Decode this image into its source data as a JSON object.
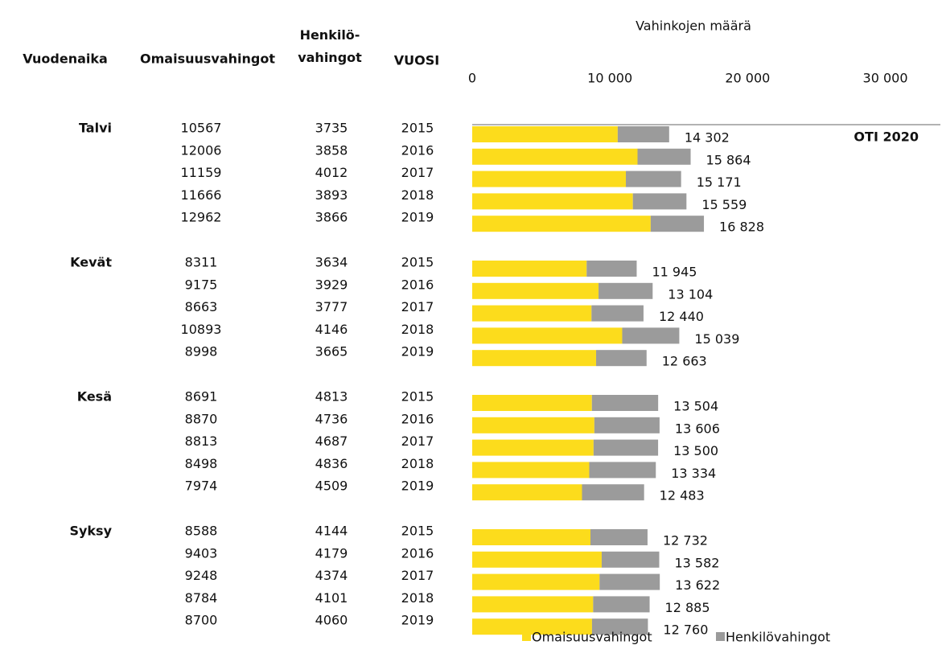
{
  "chart_data": {
    "type": "bar",
    "orientation": "horizontal",
    "stacked": true,
    "axis_title": "Vahinkojen määrä",
    "annotation": "OTI 2020",
    "column_headers": [
      "Vuodenaika",
      "Omaisuusvahingot",
      "Henkilö-\nvahingot",
      "VUOSI"
    ],
    "groups": [
      "Talvi",
      "Kevät",
      "Kesä",
      "Syksy"
    ],
    "categories": [
      "2015",
      "2016",
      "2017",
      "2018",
      "2019",
      "2015",
      "2016",
      "2017",
      "2018",
      "2019",
      "2015",
      "2016",
      "2017",
      "2018",
      "2019",
      "2015",
      "2016",
      "2017",
      "2018",
      "2019"
    ],
    "series": [
      {
        "name": "Omaisuusvahingot",
        "color": "#fcdc1c",
        "values": [
          10567,
          12006,
          11159,
          11666,
          12962,
          8311,
          9175,
          8663,
          10893,
          8998,
          8691,
          8870,
          8813,
          8498,
          7974,
          8588,
          9403,
          9248,
          8784,
          8700
        ]
      },
      {
        "name": "Henkilövahingot",
        "color": "#9b9b9b",
        "values": [
          3735,
          3858,
          4012,
          3893,
          3866,
          3634,
          3929,
          3777,
          4146,
          3665,
          4813,
          4736,
          4687,
          4836,
          4509,
          4144,
          4179,
          4374,
          4101,
          4060
        ]
      }
    ],
    "totals": [
      14302,
      15864,
      15171,
      15559,
      16828,
      11945,
      13104,
      12440,
      15039,
      12663,
      13504,
      13606,
      13500,
      13334,
      12483,
      12732,
      13582,
      13622,
      12885,
      12760
    ],
    "total_labels": [
      "14 302",
      "15 864",
      "15 171",
      "15 559",
      "16 828",
      "11 945",
      "13 104",
      "12 440",
      "15 039",
      "12 663",
      "13 504",
      "13 606",
      "13 500",
      "13 334",
      "12 483",
      "12 732",
      "13 582",
      "13 622",
      "12 885",
      "12 760"
    ],
    "xlim": [
      0,
      34000
    ],
    "xticks": [
      0,
      {
        "value": 10000,
        "label": "10 000"
      },
      {
        "value": 20000,
        "label": "20 000"
      },
      {
        "value": 30000,
        "label": "30 000"
      }
    ],
    "legend": "bottom"
  }
}
